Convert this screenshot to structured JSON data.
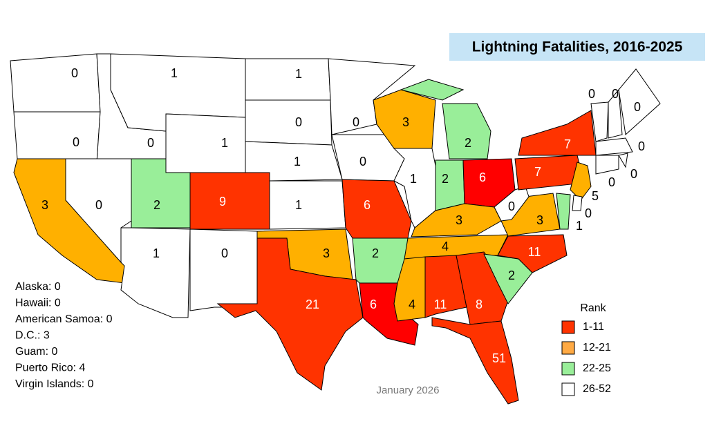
{
  "title": "Lightning Fatalities, 2016-2025",
  "footnote": "January 2026",
  "other_areas": [
    "Alaska: 0",
    "Hawaii: 0",
    "American Samoa: 0",
    "D.C.: 3",
    "Guam: 0",
    "Puerto Rico: 4",
    "Virgin Islands: 0"
  ],
  "legend": {
    "title": "Rank",
    "entries": [
      {
        "label": "1-11",
        "color": "#ff3300"
      },
      {
        "label": "12-21",
        "color": "#ffaa44"
      },
      {
        "label": "22-25",
        "color": "#99ee99"
      },
      {
        "label": "26-52",
        "color": "#ffffff"
      }
    ]
  },
  "states": [
    {
      "value": 0,
      "color": "#ffffff"
    },
    {
      "value": 0,
      "color": "#ffffff"
    },
    {
      "value": 0,
      "color": "#ffffff"
    },
    {
      "value": 1,
      "color": "#ffffff"
    },
    {
      "value": 1,
      "color": "#ffffff"
    },
    {
      "value": 3,
      "color": "#ffb000"
    },
    {
      "value": 0,
      "color": "#ffffff"
    },
    {
      "value": 2,
      "color": "#99ee99"
    },
    {
      "value": 9,
      "color": "#ff3300"
    },
    {
      "value": 1,
      "color": "#ffffff"
    },
    {
      "value": 0,
      "color": "#ffffff"
    },
    {
      "value": 1,
      "color": "#ffffff"
    },
    {
      "value": 0,
      "color": "#ffffff"
    },
    {
      "value": 1,
      "color": "#ffffff"
    },
    {
      "value": 1,
      "color": "#ffffff"
    },
    {
      "value": 3,
      "color": "#ffb000"
    },
    {
      "value": 21,
      "color": "#ff3300"
    },
    {
      "value": 0,
      "color": "#ffffff"
    },
    {
      "value": 0,
      "color": "#ffffff"
    },
    {
      "value": 6,
      "color": "#ff3300"
    },
    {
      "value": 2,
      "color": "#99ee99"
    },
    {
      "value": 6,
      "color": "#ff0000"
    },
    {
      "value": 3,
      "color": "#ffb000"
    },
    {
      "value": 1,
      "color": "#ffffff"
    },
    {
      "value": 2,
      "color": "#99ee99"
    },
    {
      "value": 2,
      "color": "#99ee99"
    },
    {
      "value": 6,
      "color": "#ff0000"
    },
    {
      "value": 3,
      "color": "#ffb000"
    },
    {
      "value": 4,
      "color": "#ffb000"
    },
    {
      "value": 4,
      "color": "#ffb000"
    },
    {
      "value": 11,
      "color": "#ff3300"
    },
    {
      "value": 8,
      "color": "#ff3300"
    },
    {
      "value": 51,
      "color": "#ff3300"
    },
    {
      "value": 2,
      "color": "#99ee99"
    },
    {
      "value": 11,
      "color": "#ff3300"
    },
    {
      "value": 3,
      "color": "#ffb000"
    },
    {
      "value": 0,
      "color": "#ffffff"
    },
    {
      "value": 7,
      "color": "#ff3300"
    },
    {
      "value": 7,
      "color": "#ff3300"
    },
    {
      "value": 5,
      "color": "#ffb000"
    },
    {
      "value": 1,
      "color": "#99ee99"
    },
    {
      "value": 0,
      "color": "#ffffff"
    },
    {
      "value": 0,
      "color": "#ffffff"
    },
    {
      "value": 0,
      "color": "#ffffff"
    },
    {
      "value": 0,
      "color": "#ffffff"
    },
    {
      "value": 0,
      "color": "#ffffff"
    },
    {
      "value": 0,
      "color": "#ffffff"
    },
    {
      "value": 0,
      "color": "#ffffff"
    }
  ]
}
